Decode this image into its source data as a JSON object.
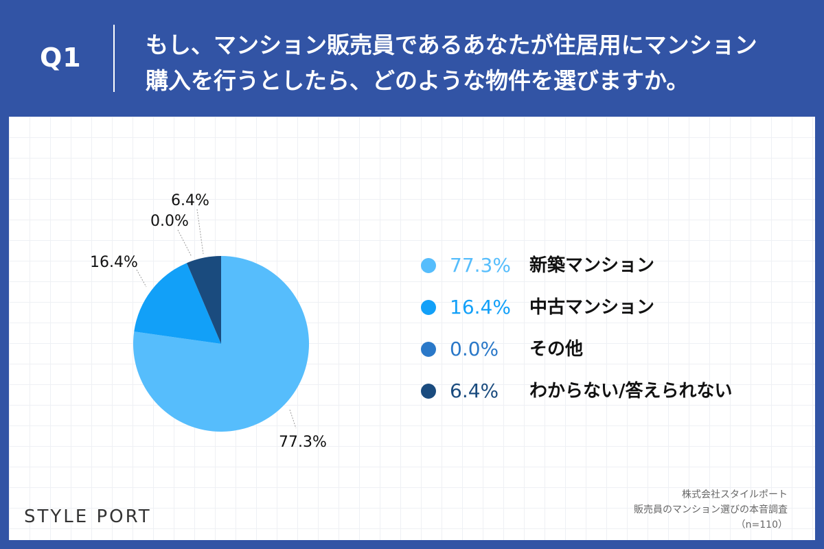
{
  "question": {
    "label": "Q1",
    "line1": "もし、マンション販売員であるあなたが住居用にマンション",
    "line2": "購入を行うとしたら、どのような物件を選びますか。"
  },
  "chart_data": {
    "type": "pie",
    "categories": [
      "新築マンション",
      "中古マンション",
      "その他",
      "わからない/答えられない"
    ],
    "values": [
      77.3,
      16.4,
      0.0,
      6.4
    ],
    "value_labels": [
      "77.3%",
      "16.4%",
      "0.0%",
      "6.4%"
    ],
    "colors": [
      "#56bdfc",
      "#12a0f8",
      "#2a78c8",
      "#1a4b7e"
    ],
    "start": "12 o'clock, clockwise",
    "legend_position": "right"
  },
  "footer": {
    "logo": "STYLE PORT",
    "source_lines": [
      "株式会社スタイルポート",
      "販売員のマンション選びの本音調査",
      "（n=110）"
    ]
  }
}
